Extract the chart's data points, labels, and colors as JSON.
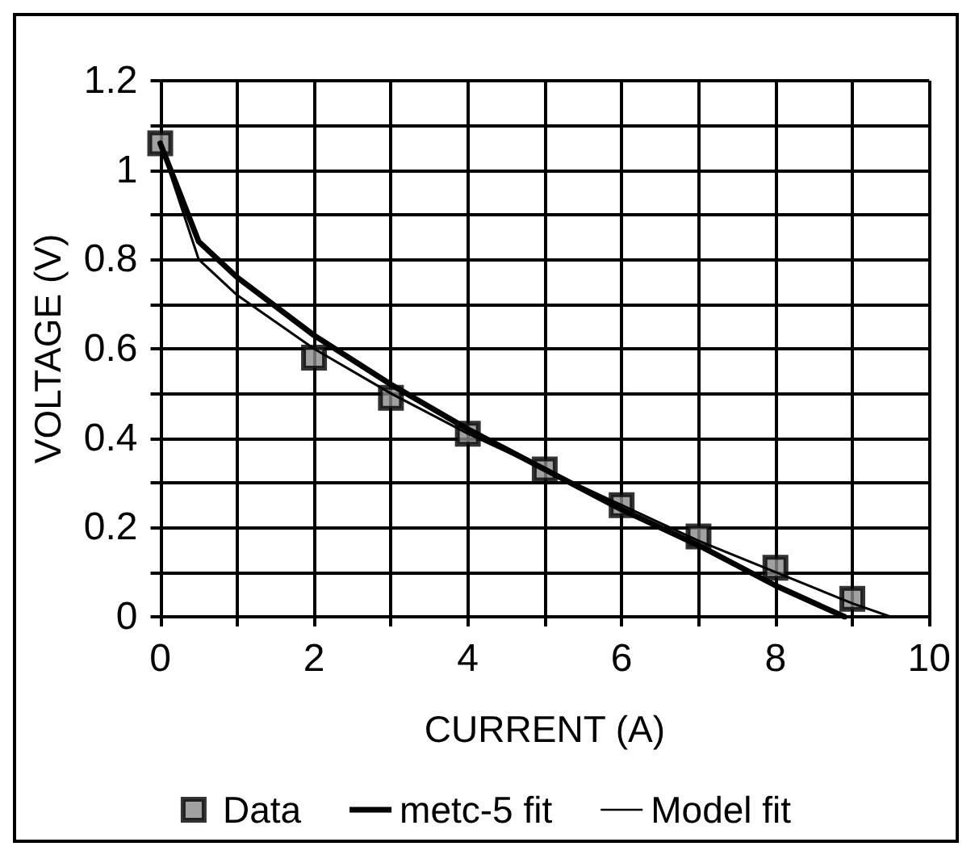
{
  "chart_data": {
    "type": "line",
    "xlabel": "CURRENT (A)",
    "ylabel": "VOLTAGE (V)",
    "xlim": [
      0,
      10
    ],
    "xticks": [
      0,
      {
        "value": 1,
        "label": null
      },
      2,
      {
        "value": 3,
        "label": null
      },
      4,
      {
        "value": 5,
        "label": null
      },
      6,
      {
        "value": 7,
        "label": null
      },
      8,
      {
        "value": 9,
        "label": null
      },
      10
    ],
    "ylim": [
      0,
      1.2
    ],
    "yticks": [
      0,
      {
        "value": 0.1,
        "label": null
      },
      0.2,
      {
        "value": 0.3,
        "label": null
      },
      0.4,
      {
        "value": 0.5,
        "label": null
      },
      0.6,
      {
        "value": 0.7,
        "label": null
      },
      0.8,
      {
        "value": 0.9,
        "label": null
      },
      1,
      {
        "value": 1.1,
        "label": null
      },
      1.2
    ],
    "grid": true,
    "legend": "bottom",
    "series": [
      {
        "name": "Data",
        "type": "scatter",
        "marker": "square",
        "color": "#000000",
        "x": [
          0,
          2,
          3,
          4,
          5,
          6,
          7,
          8,
          9
        ],
        "values": [
          1.06,
          0.58,
          0.49,
          0.41,
          0.33,
          0.25,
          0.18,
          0.11,
          0.04
        ]
      },
      {
        "name": "metc-5 fit",
        "marker": "none",
        "color": "#000000",
        "x": [
          0,
          0.5,
          1,
          2,
          3,
          4,
          5,
          6,
          7,
          8,
          8.9
        ],
        "values": [
          1.06,
          0.84,
          0.76,
          0.63,
          0.52,
          0.42,
          0.33,
          0.24,
          0.16,
          0.07,
          0
        ]
      },
      {
        "name": "Model fit",
        "marker": "none",
        "color": "#000000",
        "x": [
          0,
          0.5,
          1,
          2,
          3,
          4,
          5,
          6,
          7,
          8,
          9,
          9.5
        ],
        "values": [
          1.06,
          0.8,
          0.72,
          0.6,
          0.5,
          0.41,
          0.33,
          0.25,
          0.17,
          0.1,
          0.03,
          0
        ]
      }
    ]
  }
}
